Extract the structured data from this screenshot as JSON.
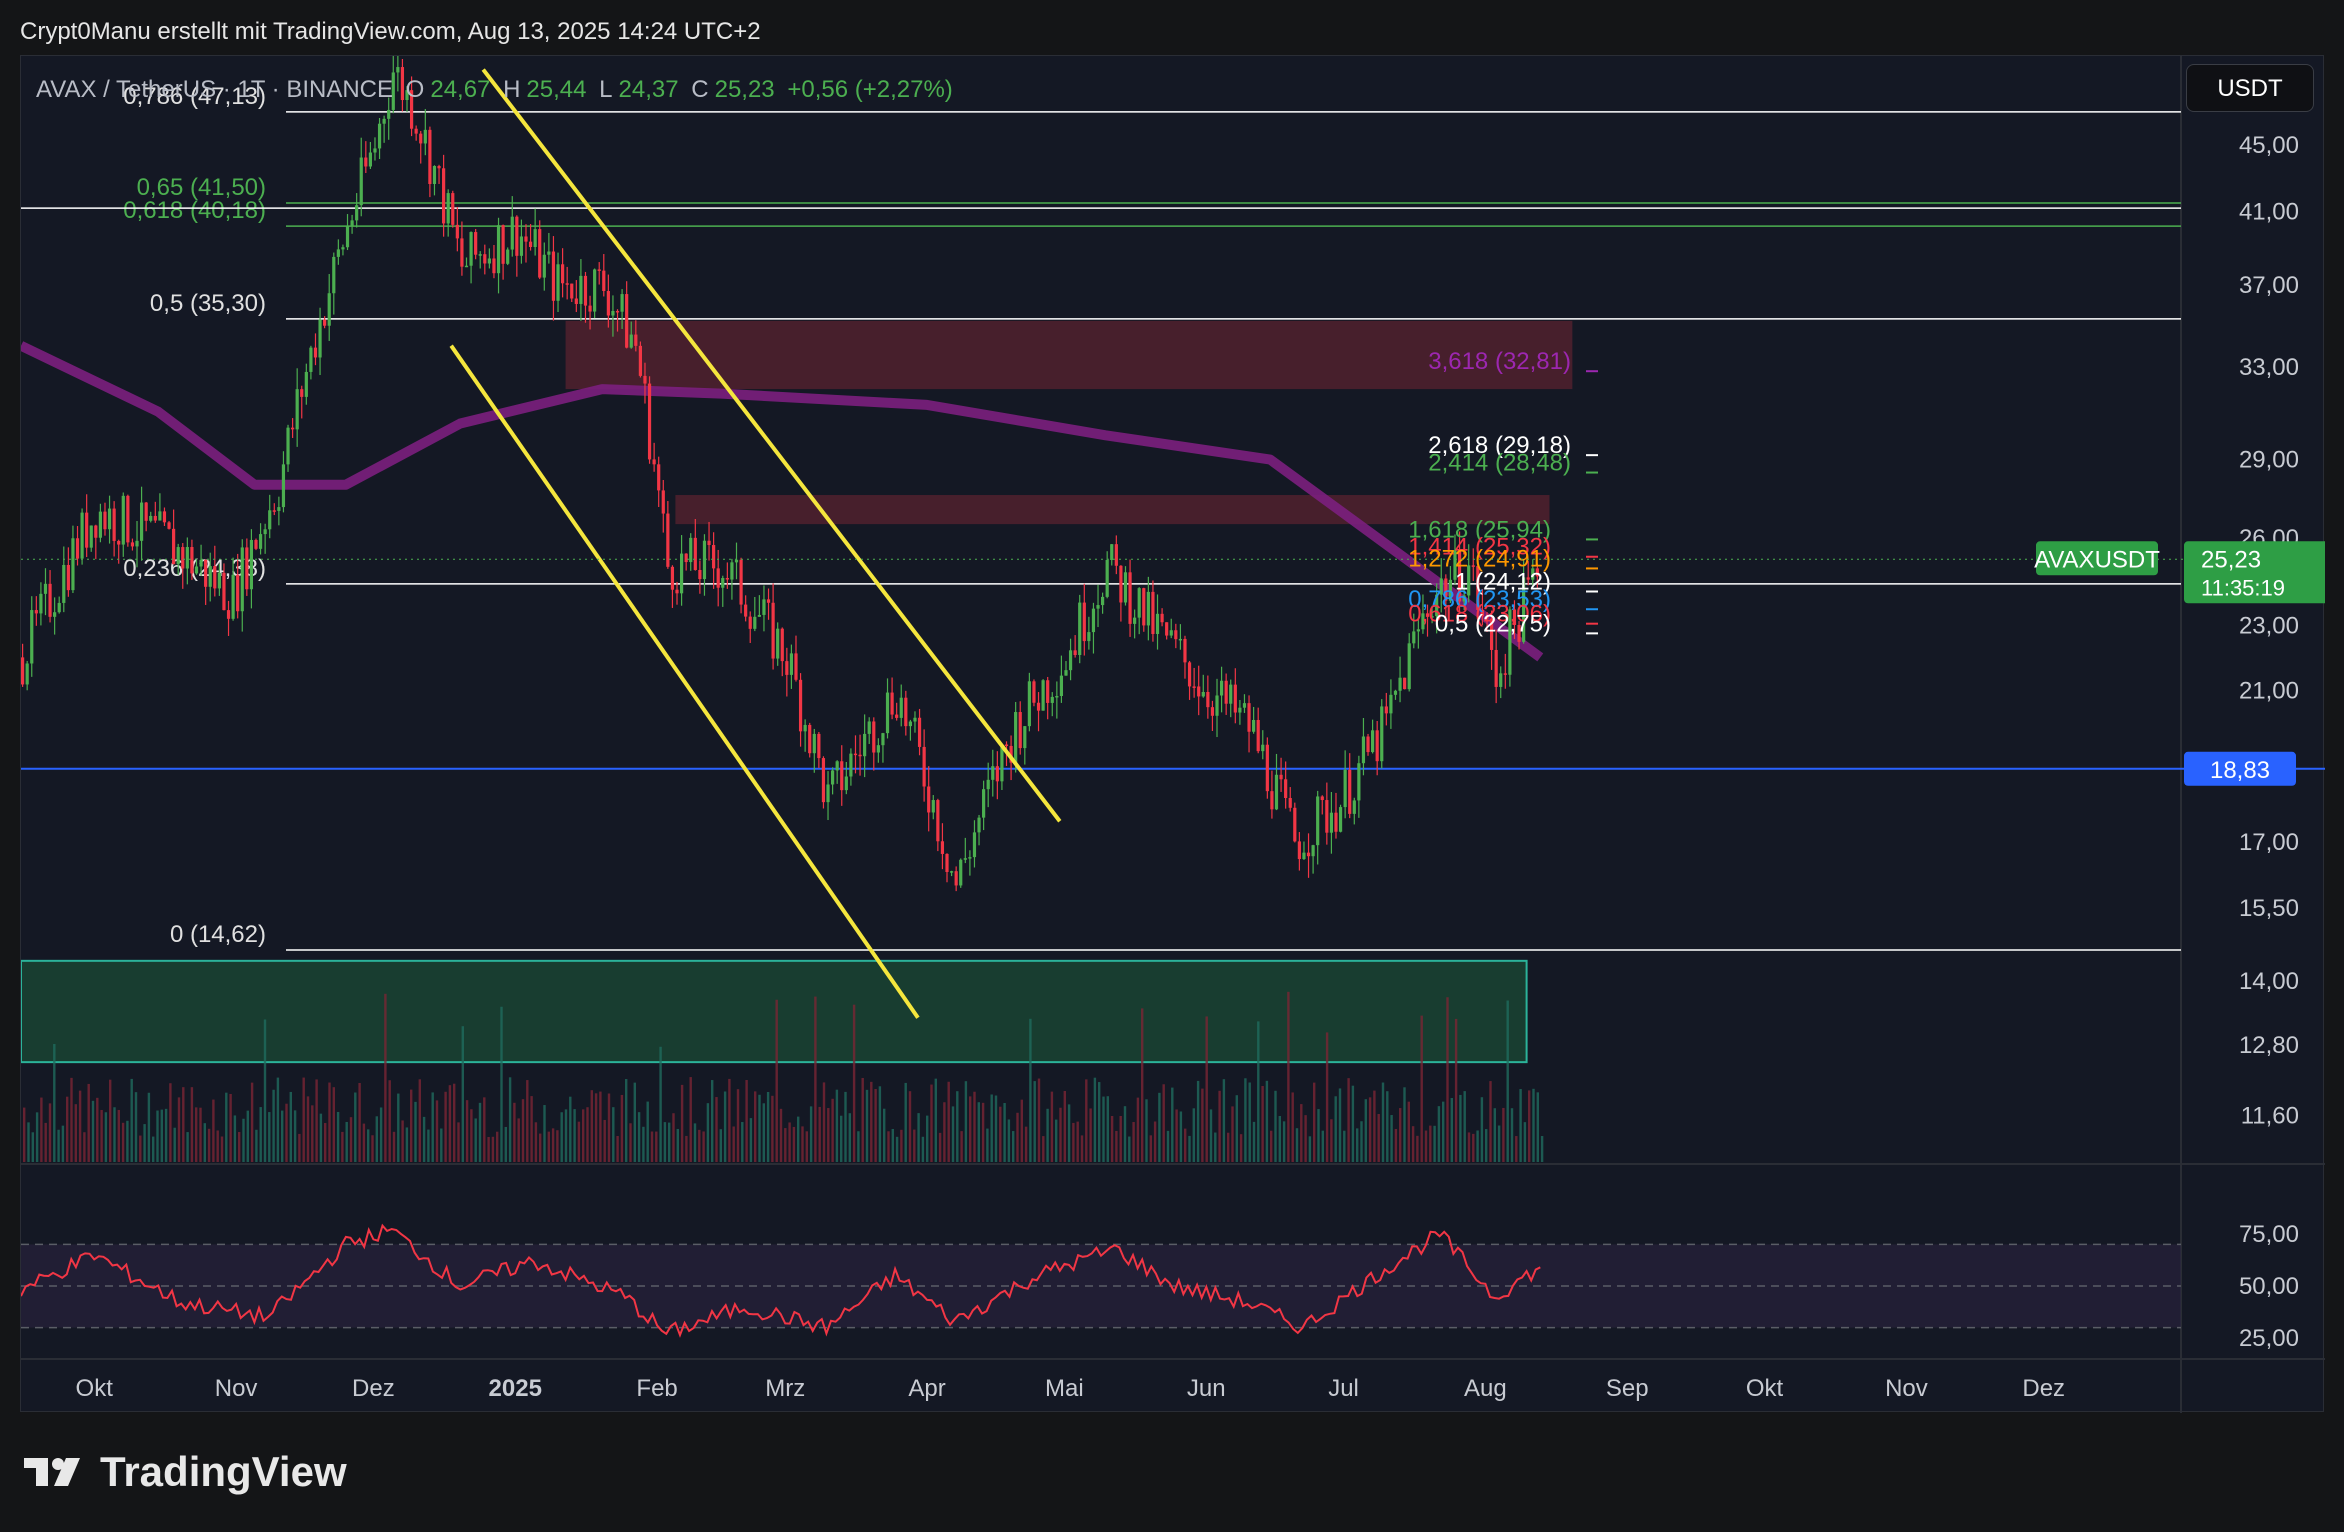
{
  "header": {
    "text": "Crypt0Manu erstellt mit TradingView.com, Aug 13, 2025 14:24 UTC+2"
  },
  "legend": {
    "symbol": "AVAX / TetherUS · 1T · BINANCE",
    "o_label": "O",
    "o": "24,67",
    "h_label": "H",
    "h": "25,44",
    "l_label": "L",
    "l": "24,37",
    "c_label": "C",
    "c": "25,23",
    "change": "+0,56 (+2,27%)"
  },
  "currency_button": "USDT",
  "price_tag": {
    "symbol": "AVAXUSDT",
    "price": "25,23",
    "countdown": "11:35:19"
  },
  "support_tag": "18,83",
  "footer": {
    "brand": "TradingView"
  },
  "colors": {
    "background": "#141824",
    "bull": "#4caf50",
    "bear": "#f23645",
    "ema": "#7b1f7e",
    "trendline": "#f5e63d",
    "support": "#2962ff",
    "zone_red": "#5c2230",
    "zone_green": "#1a4a34",
    "rsi": "#f23645"
  },
  "chart_data": {
    "type": "candlestick",
    "symbol": "AVAXUSDT",
    "timeframe": "1D",
    "price_scale": "log",
    "x_labels": [
      "Okt",
      "Nov",
      "Dez",
      "2025",
      "Feb",
      "Mrz",
      "Apr",
      "Mai",
      "Jun",
      "Jul",
      "Aug",
      "Sep",
      "Okt",
      "Nov",
      "Dez"
    ],
    "y_ticks": [
      "45,00",
      "41,00",
      "37,00",
      "33,00",
      "29,00",
      "26,00",
      "23,00",
      "21,00",
      "17,00",
      "15,50",
      "14,00",
      "12,80",
      "11,60"
    ],
    "y_tick_values": [
      45,
      41,
      37,
      33,
      29,
      26,
      23,
      21,
      17,
      15.5,
      14,
      12.8,
      11.6
    ],
    "ylim": [
      11.0,
      51.0
    ],
    "approx_close_path": [
      {
        "date": "2024-09-15",
        "price": 22.0
      },
      {
        "date": "2024-10-01",
        "price": 27.0
      },
      {
        "date": "2024-10-15",
        "price": 26.0
      },
      {
        "date": "2024-10-31",
        "price": 24.0
      },
      {
        "date": "2024-11-10",
        "price": 28.0
      },
      {
        "date": "2024-11-20",
        "price": 36.0
      },
      {
        "date": "2024-12-01",
        "price": 45.0
      },
      {
        "date": "2024-12-05",
        "price": 50.0
      },
      {
        "date": "2024-12-10",
        "price": 47.0
      },
      {
        "date": "2024-12-20",
        "price": 38.0
      },
      {
        "date": "2025-01-01",
        "price": 40.0
      },
      {
        "date": "2025-01-10",
        "price": 37.0
      },
      {
        "date": "2025-01-20",
        "price": 37.0
      },
      {
        "date": "2025-01-27",
        "price": 34.0
      },
      {
        "date": "2025-02-03",
        "price": 25.0
      },
      {
        "date": "2025-02-15",
        "price": 25.0
      },
      {
        "date": "2025-03-01",
        "price": 22.0
      },
      {
        "date": "2025-03-10",
        "price": 18.0
      },
      {
        "date": "2025-03-25",
        "price": 21.0
      },
      {
        "date": "2025-04-07",
        "price": 16.0
      },
      {
        "date": "2025-04-20",
        "price": 20.0
      },
      {
        "date": "2025-05-01",
        "price": 22.0
      },
      {
        "date": "2025-05-10",
        "price": 25.0
      },
      {
        "date": "2025-05-20",
        "price": 23.0
      },
      {
        "date": "2025-06-01",
        "price": 21.0
      },
      {
        "date": "2025-06-10",
        "price": 20.0
      },
      {
        "date": "2025-06-20",
        "price": 17.0
      },
      {
        "date": "2025-06-30",
        "price": 18.0
      },
      {
        "date": "2025-07-10",
        "price": 20.0
      },
      {
        "date": "2025-07-20",
        "price": 24.0
      },
      {
        "date": "2025-07-28",
        "price": 25.0
      },
      {
        "date": "2025-08-03",
        "price": 21.5
      },
      {
        "date": "2025-08-13",
        "price": 25.23
      }
    ],
    "fib_retracement": [
      {
        "label": "0,786 (47,13)",
        "value": 47.13
      },
      {
        "label": "0,65 (41,50)",
        "value": 41.5
      },
      {
        "label": "0,618 (40,18)",
        "value": 40.18
      },
      {
        "label": "0,5 (35,30)",
        "value": 35.3
      },
      {
        "label": "0,236 (24,38)",
        "value": 24.38
      },
      {
        "label": "0 (14,62)",
        "value": 14.62
      }
    ],
    "fib_extension": [
      {
        "label": "3,618 (32,81)",
        "value": 32.81,
        "color": "#9c27b0"
      },
      {
        "label": "2,618 (29,18)",
        "value": 29.18,
        "color": "#ffffff"
      },
      {
        "label": "2,414 (28,48)",
        "value": 28.48,
        "color": "#4caf50"
      },
      {
        "label": "1,618 (25,94)",
        "value": 25.94,
        "color": "#4caf50"
      },
      {
        "label": "1,414 (25,32)",
        "value": 25.32,
        "color": "#f23645"
      },
      {
        "label": "1,272 (24,91)",
        "value": 24.91,
        "color": "#ff9800"
      },
      {
        "label": "1 (24,12)",
        "value": 24.12,
        "color": "#ffffff"
      },
      {
        "label": "0,786 (23,53)",
        "value": 23.53,
        "color": "#2196f3"
      },
      {
        "label": "0,618 (23,06)",
        "value": 23.06,
        "color": "#f23645"
      },
      {
        "label": "0,5 (22,75)",
        "value": 22.75,
        "color": "#ffffff"
      }
    ],
    "support_line": 18.83,
    "zones": [
      {
        "type": "resistance",
        "from_price": 32.0,
        "to_price": 35.2,
        "start": "2025-01-12",
        "end": "2025-08-20"
      },
      {
        "type": "resistance",
        "from_price": 26.5,
        "to_price": 27.6,
        "start": "2025-02-05",
        "end": "2025-08-15"
      },
      {
        "type": "demand",
        "from_price": 12.5,
        "to_price": 14.4,
        "start": "2024-09-15",
        "end": "2025-08-10"
      }
    ],
    "channel": {
      "upper": [
        {
          "date": "2024-12-25",
          "price": 50.0
        },
        {
          "date": "2025-04-30",
          "price": 17.5
        }
      ],
      "lower": [
        {
          "date": "2024-12-18",
          "price": 34.0
        },
        {
          "date": "2025-03-30",
          "price": 13.3
        }
      ]
    },
    "ema_200_path": [
      {
        "date": "2024-09-15",
        "price": 34.0
      },
      {
        "date": "2024-10-15",
        "price": 31.0
      },
      {
        "date": "2024-11-05",
        "price": 28.0
      },
      {
        "date": "2024-11-25",
        "price": 28.0
      },
      {
        "date": "2024-12-20",
        "price": 30.5
      },
      {
        "date": "2025-01-20",
        "price": 32.0
      },
      {
        "date": "2025-02-15",
        "price": 31.8
      },
      {
        "date": "2025-04-01",
        "price": 31.3
      },
      {
        "date": "2025-05-10",
        "price": 30.0
      },
      {
        "date": "2025-06-15",
        "price": 29.0
      },
      {
        "date": "2025-07-10",
        "price": 25.8
      },
      {
        "date": "2025-08-13",
        "price": 22.0
      }
    ],
    "rsi": {
      "ticks": [
        "75,00",
        "50,00",
        "25,00"
      ],
      "tick_values": [
        75,
        50,
        25
      ],
      "upper": 70,
      "lower": 30,
      "approx_path": [
        {
          "date": "2024-09-15",
          "value": 48
        },
        {
          "date": "2024-10-01",
          "value": 65
        },
        {
          "date": "2024-10-20",
          "value": 42
        },
        {
          "date": "2024-11-08",
          "value": 35
        },
        {
          "date": "2024-11-25",
          "value": 70
        },
        {
          "date": "2024-12-05",
          "value": 77
        },
        {
          "date": "2024-12-20",
          "value": 50
        },
        {
          "date": "2025-01-05",
          "value": 62
        },
        {
          "date": "2025-01-25",
          "value": 45
        },
        {
          "date": "2025-02-03",
          "value": 27
        },
        {
          "date": "2025-02-20",
          "value": 40
        },
        {
          "date": "2025-03-10",
          "value": 30
        },
        {
          "date": "2025-03-25",
          "value": 55
        },
        {
          "date": "2025-04-07",
          "value": 33
        },
        {
          "date": "2025-04-25",
          "value": 55
        },
        {
          "date": "2025-05-12",
          "value": 68
        },
        {
          "date": "2025-05-25",
          "value": 50
        },
        {
          "date": "2025-06-10",
          "value": 42
        },
        {
          "date": "2025-06-22",
          "value": 30
        },
        {
          "date": "2025-07-10",
          "value": 58
        },
        {
          "date": "2025-07-22",
          "value": 75
        },
        {
          "date": "2025-08-03",
          "value": 45
        },
        {
          "date": "2025-08-13",
          "value": 59
        }
      ]
    }
  }
}
